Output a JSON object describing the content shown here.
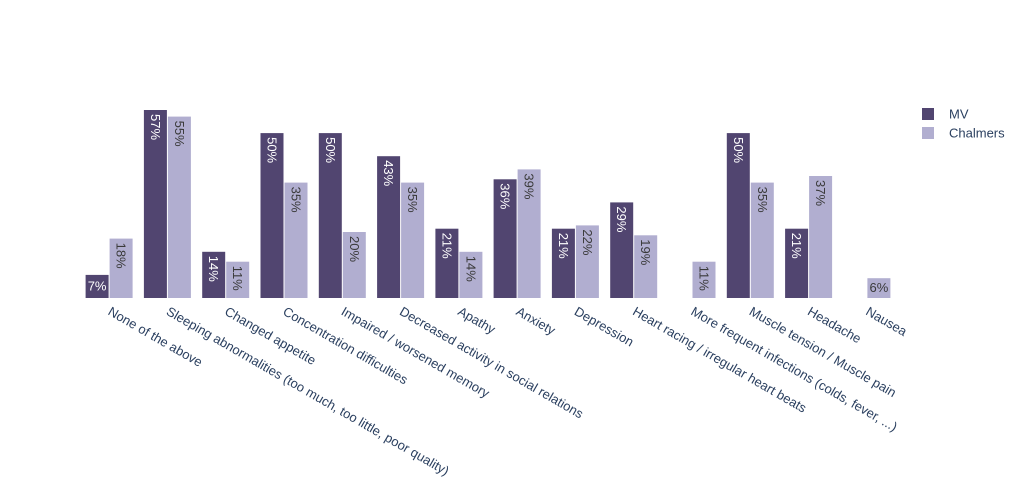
{
  "chart_data": {
    "type": "bar",
    "title": "",
    "xlabel": "",
    "ylabel": "",
    "ylim": [
      0,
      0.6
    ],
    "legend_position": "top-right",
    "grid": false,
    "categories": [
      "None of the above",
      "Sleeping abnormalities (too much, too little, poor quality)",
      "Changed appetite",
      "Concentration difficulties",
      "Impaired / worsened memory",
      "Decreased  activity in social relations",
      "Apathy",
      "Anxiety",
      "Depression",
      "Heart racing / irregular heart beats",
      "More frequent infections (colds, fever, ...)",
      "Muscle tension / Muscle pain",
      "Headache",
      "Nausea"
    ],
    "series": [
      {
        "name": "MV",
        "color": "#514570",
        "values": [
          0.07,
          0.57,
          0.14,
          0.5,
          0.5,
          0.43,
          0.21,
          0.36,
          0.21,
          0.29,
          0,
          0.5,
          0.21,
          0
        ],
        "labels": [
          "7%",
          "57%",
          "14%",
          "50%",
          "50%",
          "43%",
          "21%",
          "36%",
          "21%",
          "29%",
          "",
          "50%",
          "21%",
          ""
        ]
      },
      {
        "name": "Chalmers",
        "color": "#b1aed0",
        "values": [
          0.18,
          0.55,
          0.11,
          0.35,
          0.2,
          0.35,
          0.14,
          0.39,
          0.22,
          0.19,
          0.11,
          0.35,
          0.37,
          0.06
        ],
        "labels": [
          "18%",
          "55%",
          "11%",
          "35%",
          "20%",
          "35%",
          "14%",
          "39%",
          "22%",
          "19%",
          "11%",
          "35%",
          "37%",
          "6%"
        ]
      }
    ]
  }
}
